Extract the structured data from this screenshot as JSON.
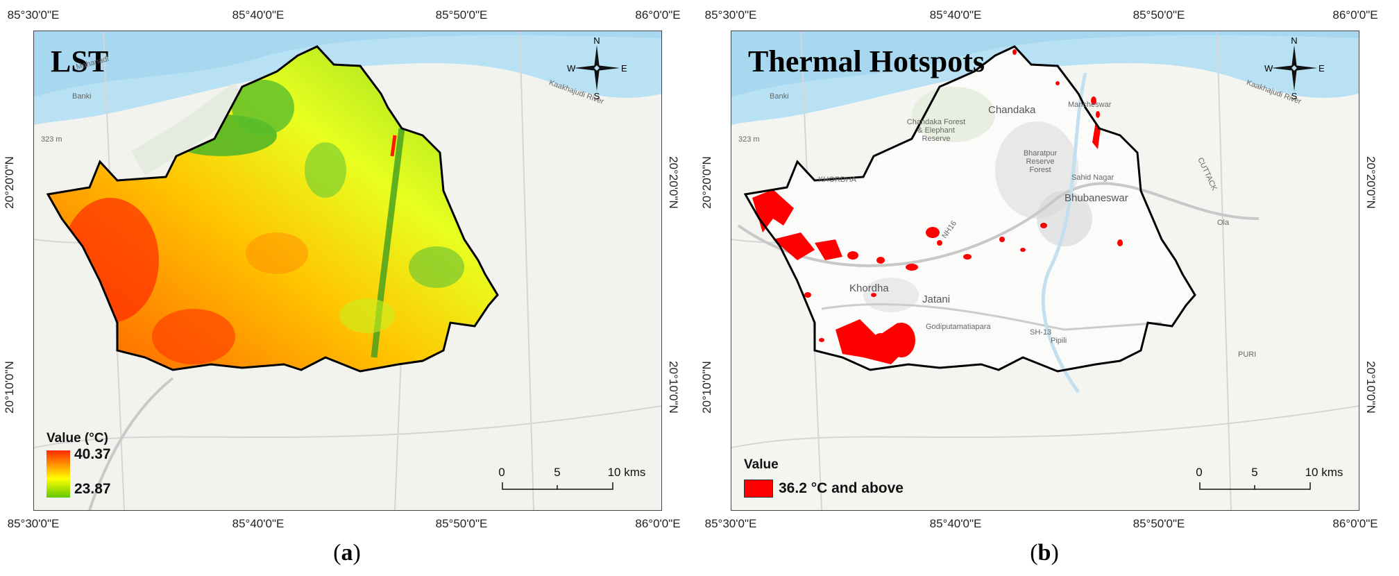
{
  "axes": {
    "top_ticks": [
      "85°30'0\"E",
      "85°40'0\"E",
      "85°50'0\"E",
      "86°0'0\"E"
    ],
    "bottom_ticks": [
      "85°30'0\"E",
      "85°40'0\"E",
      "85°50'0\"E",
      "86°0'0\"E"
    ],
    "left_ticks": [
      "20°20'0\"N",
      "20°10'0\"N"
    ],
    "right_ticks": [
      "20°20'0\"N",
      "20°10'0\"N"
    ]
  },
  "north_arrow": {
    "n": "N",
    "s": "S",
    "e": "E",
    "w": "W"
  },
  "scalebar": {
    "labels": [
      "0",
      "5",
      "10 kms"
    ]
  },
  "panel_a": {
    "title": "LST",
    "caption": "a",
    "legend": {
      "title": "Value (°C)",
      "max": "40.37",
      "min": "23.87"
    },
    "colors": {
      "hot": "#ff2a00",
      "mid": "#ffff00",
      "cool": "#64c800"
    },
    "places": [
      "Banki",
      "Mahanadi",
      "323 m",
      "Kaakhajudi River"
    ]
  },
  "panel_b": {
    "title": "Thermal Hotspots",
    "caption": "b",
    "legend": {
      "title": "Value",
      "class_label": "36.2 °C and above"
    },
    "colors": {
      "hotspot": "#ff0000"
    },
    "places": [
      "Banki",
      "Chandaka",
      "Chandaka Forest & Elephant Reserve",
      "Bharatpur Reserve Forest",
      "Mancheswar",
      "Sahid Nagar",
      "Bhubaneswar",
      "KHORDHA",
      "Khordha",
      "Jatani",
      "Godiputamatiapara",
      "Pipili",
      "323 m",
      "PURI",
      "CUTTACK",
      "Kaakhajudi River",
      "Ola",
      "SH-13",
      "NH16"
    ]
  }
}
